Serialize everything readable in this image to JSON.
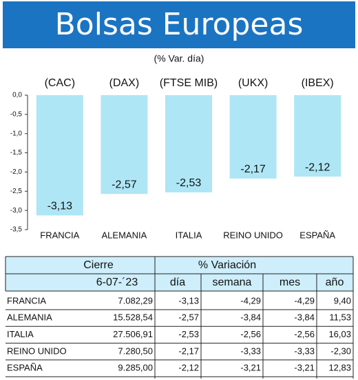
{
  "title": "Bolsas Europeas",
  "chart_data": {
    "type": "bar",
    "subtitle": "(% Var. día)",
    "indices": [
      "(CAC)",
      "(DAX)",
      "(FTSE MIB)",
      "(UKX)",
      "(IBEX)"
    ],
    "categories": [
      "FRANCIA",
      "ALEMANIA",
      "ITALIA",
      "REINO UNIDO",
      "ESPAÑA"
    ],
    "values": [
      -3.13,
      -2.57,
      -2.53,
      -2.17,
      -2.12
    ],
    "value_labels": [
      "-3,13",
      "-2,57",
      "-2,53",
      "-2,17",
      "-2,12"
    ],
    "color": "#aee6f5",
    "ylim": [
      -3.5,
      0
    ],
    "yticks": [
      {
        "value": 0,
        "label": "0,0"
      },
      {
        "value": -0.5,
        "label": "-0,5"
      },
      {
        "value": -1,
        "label": "-1,0"
      },
      {
        "value": -1.5,
        "label": "-1,5"
      },
      {
        "value": -2,
        "label": "-2,0"
      },
      {
        "value": -2.5,
        "label": "-2,5"
      },
      {
        "value": -3,
        "label": "-3,0"
      },
      {
        "value": -3.5,
        "label": "-3,5"
      }
    ]
  },
  "table": {
    "header": [
      "Cierre",
      "% Variación"
    ],
    "subheader": [
      "6-07-´23",
      "día",
      "semana",
      "mes",
      "año"
    ],
    "rows": [
      [
        "FRANCIA",
        "7.082,29",
        "-3,13",
        "-4,29",
        "-4,29",
        "9,40"
      ],
      [
        "ALEMANIA",
        "15.528,54",
        "-2,57",
        "-3,84",
        "-3,84",
        "11,53"
      ],
      [
        "ITALIA",
        "27.506,91",
        "-2,53",
        "-2,56",
        "-2,56",
        "16,03"
      ],
      [
        "REINO UNIDO",
        "7.280,50",
        "-2,17",
        "-3,33",
        "-3,33",
        "-2,30"
      ],
      [
        "ESPAÑA",
        "9.285,00",
        "-2,12",
        "-3,21",
        "-3,21",
        "12,83"
      ]
    ]
  }
}
